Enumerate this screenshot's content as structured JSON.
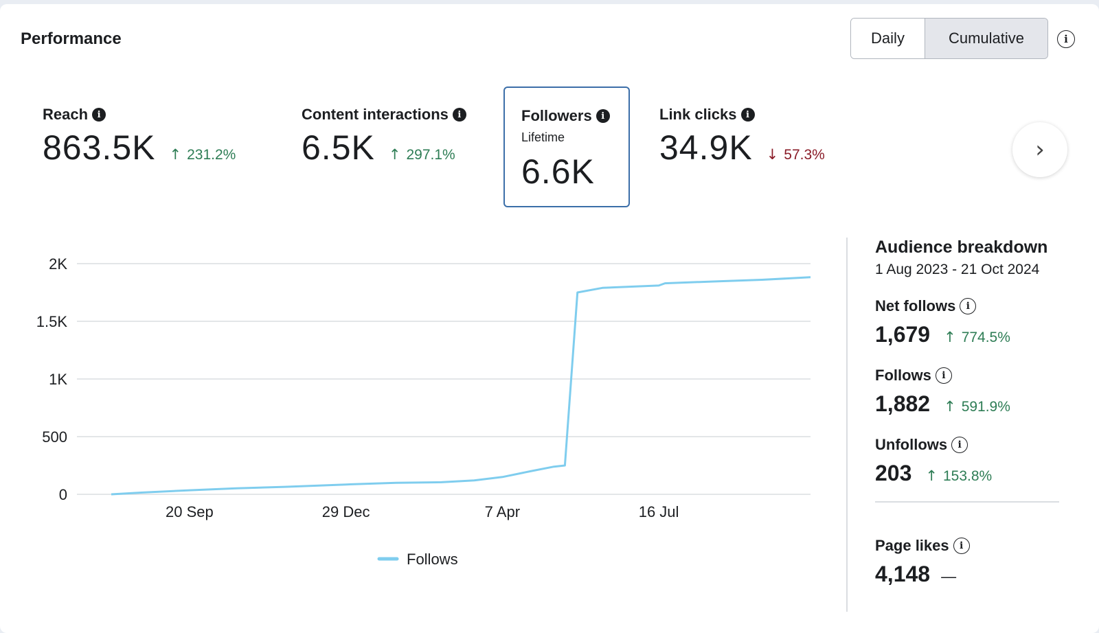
{
  "header": {
    "title": "Performance",
    "toggle": {
      "daily": "Daily",
      "cumulative": "Cumulative",
      "selected": "Cumulative"
    },
    "info_icon": "info-circle-icon"
  },
  "metrics": [
    {
      "label": "Reach",
      "value": "863.5K",
      "change": "231.2%",
      "direction": "up"
    },
    {
      "label": "Content interactions",
      "value": "6.5K",
      "change": "297.1%",
      "direction": "up"
    },
    {
      "label": "Followers",
      "sublabel": "Lifetime",
      "value": "6.6K",
      "selected": true
    },
    {
      "label": "Link clicks",
      "value": "34.9K",
      "change": "57.3%",
      "direction": "down"
    }
  ],
  "next_icon": "chevron-right-icon",
  "chart_data": {
    "type": "line",
    "title": "",
    "xlabel": "",
    "ylabel": "",
    "x_ticks": [
      "20 Sep",
      "29 Dec",
      "7 Apr",
      "16 Jul"
    ],
    "y_ticks": [
      "0",
      "500",
      "1K",
      "1.5K",
      "2K"
    ],
    "ylim": [
      0,
      2000
    ],
    "xlim": [
      "2023-08-01",
      "2024-10-21"
    ],
    "grid": true,
    "legend_position": "bottom",
    "series": [
      {
        "name": "Follows",
        "color": "#7fcdee",
        "points": [
          [
            "2023-08-01",
            0
          ],
          [
            "2023-08-20",
            15
          ],
          [
            "2023-09-20",
            35
          ],
          [
            "2023-10-20",
            52
          ],
          [
            "2023-11-20",
            65
          ],
          [
            "2023-12-29",
            85
          ],
          [
            "2024-01-30",
            100
          ],
          [
            "2024-02-28",
            105
          ],
          [
            "2024-03-20",
            120
          ],
          [
            "2024-04-07",
            150
          ],
          [
            "2024-04-25",
            200
          ],
          [
            "2024-05-10",
            240
          ],
          [
            "2024-05-17",
            250
          ],
          [
            "2024-05-25",
            1750
          ],
          [
            "2024-06-10",
            1790
          ],
          [
            "2024-07-16",
            1810
          ],
          [
            "2024-07-20",
            1830
          ],
          [
            "2024-08-20",
            1845
          ],
          [
            "2024-09-20",
            1860
          ],
          [
            "2024-10-21",
            1882
          ]
        ]
      }
    ]
  },
  "audience": {
    "title": "Audience breakdown",
    "range": "1 Aug 2023 - 21 Oct 2024",
    "stats": [
      {
        "label": "Net follows",
        "value": "1,679",
        "change": "774.5%",
        "direction": "up"
      },
      {
        "label": "Follows",
        "value": "1,882",
        "change": "591.9%",
        "direction": "up"
      },
      {
        "label": "Unfollows",
        "value": "203",
        "change": "153.8%",
        "direction": "up"
      }
    ],
    "page_likes": {
      "label": "Page likes",
      "value": "4,148",
      "change": "—"
    }
  }
}
